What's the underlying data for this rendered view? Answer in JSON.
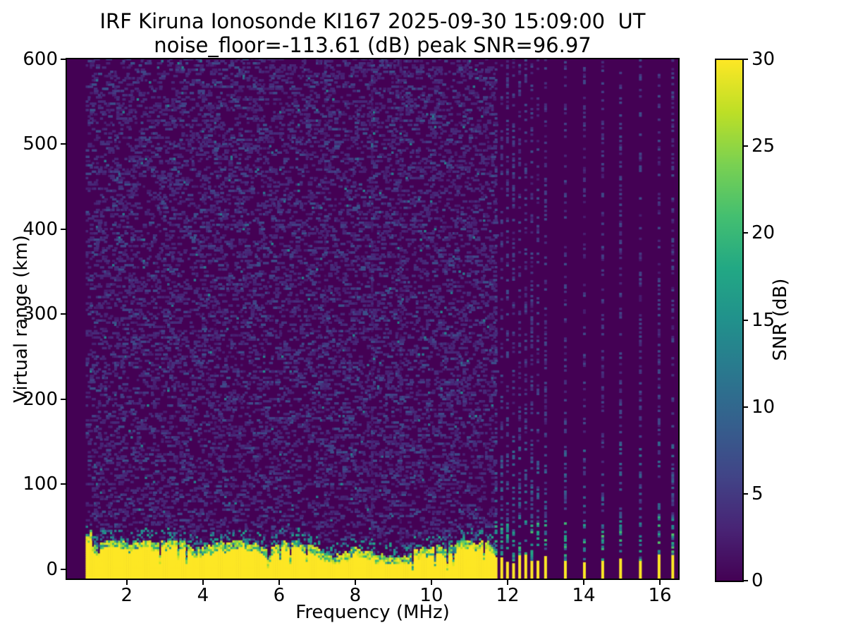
{
  "figure": {
    "title_line1": "IRF Kiruna Ionosonde KI167 2025-09-30 15:09:00  UT",
    "title_line2": "noise_floor=-113.61 (dB) peak SNR=96.97",
    "background": "#ffffff"
  },
  "chart_data": {
    "type": "heatmap",
    "title": "IRF Kiruna Ionosonde KI167 2025-09-30 15:09:00  UT",
    "subtitle": "noise_floor=-113.61 (dB) peak SNR=96.97",
    "station": "IRF Kiruna Ionosonde KI167",
    "timestamp_ut": "2025-09-30 15:09:00",
    "noise_floor_db": -113.61,
    "peak_snr_db": 96.97,
    "xlabel": "Frequency (MHz)",
    "ylabel": "Virtual range (km)",
    "colorbar_label": "SNR (dB)",
    "xlim": [
      0.43,
      16.48
    ],
    "ylim": [
      -10.8,
      600
    ],
    "clim": [
      0,
      30
    ],
    "xticks": [
      2,
      4,
      6,
      8,
      10,
      12,
      14,
      16
    ],
    "yticks": [
      0,
      100,
      200,
      300,
      400,
      500,
      600
    ],
    "cticks": [
      0,
      5,
      10,
      15,
      20,
      25,
      30
    ],
    "grid": false,
    "legend": "colorbar-right",
    "colormap": {
      "name": "viridis",
      "stops": [
        [
          0.0,
          "#440154"
        ],
        [
          0.1,
          "#482475"
        ],
        [
          0.2,
          "#414487"
        ],
        [
          0.3,
          "#355f8d"
        ],
        [
          0.4,
          "#2a788e"
        ],
        [
          0.5,
          "#21918c"
        ],
        [
          0.6,
          "#22a884"
        ],
        [
          0.7,
          "#44bf70"
        ],
        [
          0.8,
          "#7ad151"
        ],
        [
          0.9,
          "#bddf26"
        ],
        [
          1.0,
          "#fde725"
        ]
      ]
    },
    "render": {
      "seed": 1167,
      "sweep_start": 0.92,
      "sweep_end": 11.62,
      "sweep_step": 0.0535,
      "row_km": 2.5,
      "band_base": 24,
      "band_min": 14,
      "band_max": 34,
      "notch_prob": 0.055,
      "stripes": [
        {
          "f": 8.43,
          "boost": 1.6
        },
        {
          "f": 9.15,
          "boost": 1.1
        },
        {
          "f": 7.16,
          "boost": 0.5
        },
        {
          "f": 4.3,
          "boost": 0.35
        }
      ],
      "discrete_freqs": [
        11.66,
        11.81,
        11.96,
        12.12,
        12.28,
        12.44,
        12.6,
        12.76,
        12.96,
        13.48,
        13.98,
        14.46,
        14.93,
        15.45,
        15.94,
        16.3
      ],
      "discrete_width": 4,
      "yellow_min": 7,
      "yellow_max": 18
    }
  }
}
